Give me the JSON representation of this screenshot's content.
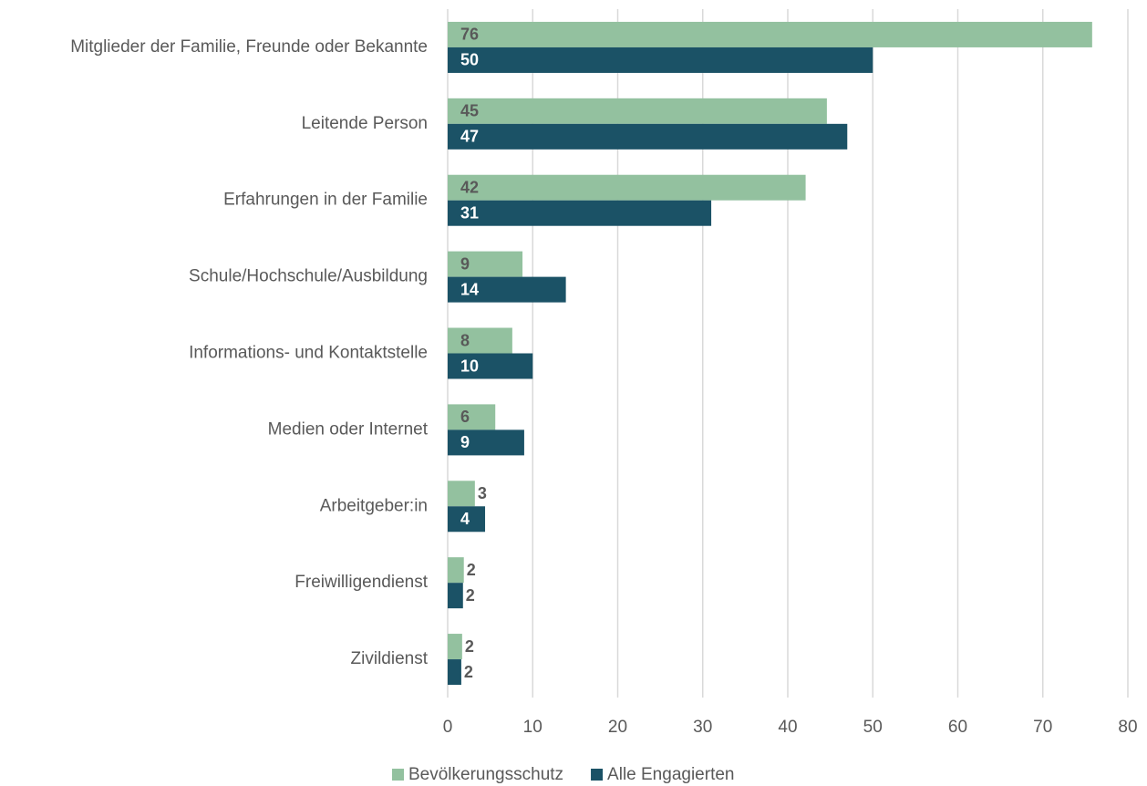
{
  "chart_data": {
    "type": "hbar",
    "categories": [
      "Mitglieder der Familie, Freunde oder Bekannte",
      "Leitende Person",
      "Erfahrungen in der Familie",
      "Schule/Hochschule/Ausbildung",
      "Informations- und Kontaktstelle",
      "Medien oder Internet",
      "Arbeitgeber:in",
      "Freiwilligendienst",
      "Zivildienst"
    ],
    "series": [
      {
        "name": "Bevölkerungsschutz",
        "color": "#93c19f",
        "label_color": "#595959",
        "values": [
          75.8,
          44.6,
          42.1,
          8.8,
          7.6,
          5.6,
          3.2,
          1.9,
          1.7
        ],
        "value_labels": [
          "76",
          "45",
          "42",
          "9",
          "8",
          "6",
          "3",
          "2",
          "2"
        ]
      },
      {
        "name": "Alle Engagierten",
        "color": "#1b5266",
        "label_color": "#ffffff",
        "values": [
          50,
          47,
          31,
          13.9,
          10,
          9,
          4.4,
          1.8,
          1.6
        ],
        "value_labels": [
          "50",
          "47",
          "31",
          "14",
          "10",
          "9",
          "4",
          "2",
          "2"
        ]
      }
    ],
    "xlim": [
      0,
      80
    ],
    "xticks": [
      0,
      10,
      20,
      30,
      40,
      50,
      60,
      70,
      80
    ],
    "grid": true,
    "legend": "bottom"
  }
}
